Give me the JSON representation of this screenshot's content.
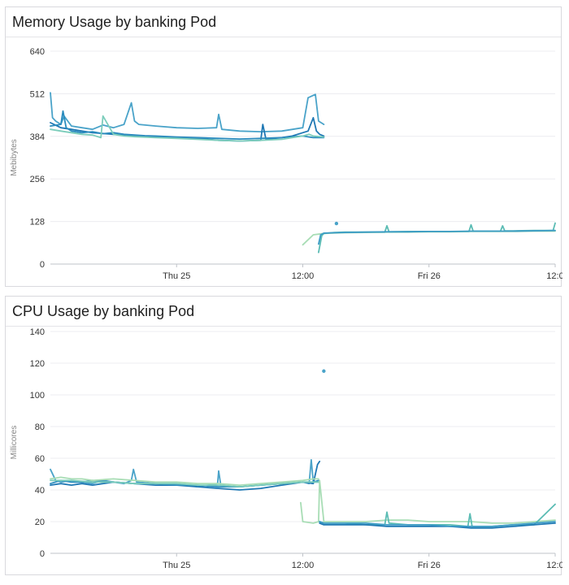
{
  "panels": [
    {
      "title": "Memory Usage by banking Pod",
      "ylabel": "Mebibytes"
    },
    {
      "title": "CPU Usage by banking Pod",
      "ylabel": "Millicores"
    }
  ],
  "chart_data": [
    {
      "type": "line",
      "title": "Memory Usage by banking Pod",
      "ylabel": "Mebibytes",
      "xlabel": "",
      "ylim": [
        0,
        640
      ],
      "yticks": [
        0,
        128,
        256,
        384,
        512,
        640
      ],
      "xlim": [
        0,
        48
      ],
      "xticks": [
        {
          "x": 12,
          "label": "Thu 25"
        },
        {
          "x": 24,
          "label": "12:00"
        },
        {
          "x": 36,
          "label": "Fri 26"
        },
        {
          "x": 48,
          "label": "12:0"
        }
      ],
      "grid": true,
      "series": [
        {
          "color": "#4aa3c9",
          "x": [
            0,
            0.2,
            0.5,
            1,
            1.3,
            2,
            3,
            4,
            5,
            6,
            7,
            7.7,
            8,
            8.4,
            10,
            12,
            14,
            15.8,
            16,
            16.3,
            18,
            20,
            22,
            24,
            24.5,
            25.2,
            25.5,
            26
          ],
          "y": [
            515,
            440,
            430,
            420,
            445,
            415,
            410,
            405,
            418,
            410,
            420,
            485,
            430,
            420,
            415,
            410,
            408,
            410,
            450,
            405,
            400,
            398,
            400,
            410,
            500,
            510,
            430,
            420
          ]
        },
        {
          "color": "#1f78b4",
          "x": [
            0,
            1,
            2,
            3,
            4,
            6,
            8,
            10,
            12,
            14,
            16,
            18,
            20,
            20.2,
            20.5,
            22,
            23,
            24,
            24.5,
            25,
            25.3,
            25.6,
            26
          ],
          "y": [
            425,
            410,
            405,
            400,
            395,
            390,
            385,
            383,
            380,
            378,
            372,
            370,
            372,
            420,
            375,
            380,
            385,
            395,
            400,
            440,
            400,
            390,
            385
          ]
        },
        {
          "color": "#2b8cbe",
          "x": [
            0,
            1,
            1.2,
            1.5,
            2,
            3,
            4,
            5,
            6,
            7,
            8,
            9,
            10,
            12,
            14,
            16,
            18,
            20,
            22,
            24,
            25,
            26
          ],
          "y": [
            415,
            420,
            460,
            410,
            400,
            395,
            398,
            392,
            395,
            390,
            388,
            386,
            385,
            382,
            380,
            378,
            376,
            378,
            380,
            385,
            380,
            380
          ]
        },
        {
          "color": "#7ccdbb",
          "x": [
            0,
            1,
            2,
            3,
            4,
            4.8,
            5,
            6,
            7,
            8,
            10,
            12,
            14,
            16,
            18,
            20,
            22,
            23,
            24,
            24.6,
            25,
            26
          ],
          "y": [
            405,
            400,
            395,
            390,
            388,
            380,
            445,
            390,
            385,
            383,
            380,
            378,
            375,
            372,
            370,
            372,
            375,
            380,
            385,
            390,
            385,
            382
          ]
        },
        {
          "color": "#a8ddb5",
          "x": [
            24,
            25,
            26,
            27,
            28,
            30,
            32,
            34,
            36,
            38,
            40,
            42,
            44,
            46,
            48
          ],
          "y": [
            58,
            88,
            92,
            93,
            94,
            95,
            96,
            96,
            97,
            97,
            98,
            98,
            98,
            99,
            99
          ]
        },
        {
          "color": "#5bbcb4",
          "x": [
            25.5,
            25.8,
            26,
            27,
            28,
            30,
            31.8,
            32,
            32.2,
            34,
            36,
            38,
            39.8,
            40,
            40.2,
            42,
            42.8,
            43,
            43.2,
            44,
            46,
            47.8,
            48
          ],
          "y": [
            35,
            85,
            92,
            95,
            96,
            96,
            96,
            115,
            97,
            98,
            98,
            98,
            98,
            118,
            99,
            99,
            99,
            115,
            100,
            100,
            101,
            101,
            123
          ]
        },
        {
          "color": "#3d9cc6",
          "x": [
            25.5,
            25.7,
            26,
            27,
            28,
            30,
            32,
            34,
            36,
            38,
            40,
            42,
            44,
            46,
            48
          ],
          "y": [
            60,
            88,
            93,
            94,
            95,
            96,
            97,
            97,
            98,
            98,
            99,
            99,
            99,
            100,
            101
          ]
        }
      ],
      "points": [
        {
          "color": "#4aa3c9",
          "x": 27.2,
          "y": 122
        }
      ]
    },
    {
      "type": "line",
      "title": "CPU Usage by banking Pod",
      "ylabel": "Millicores",
      "xlabel": "",
      "ylim": [
        0,
        140
      ],
      "yticks": [
        0,
        20,
        40,
        60,
        80,
        100,
        120,
        140
      ],
      "xlim": [
        0,
        48
      ],
      "xticks": [
        {
          "x": 12,
          "label": "Thu 25"
        },
        {
          "x": 24,
          "label": "12:00"
        },
        {
          "x": 36,
          "label": "Fri 26"
        },
        {
          "x": 48,
          "label": "12:0"
        }
      ],
      "grid": true,
      "series": [
        {
          "color": "#4aa3c9",
          "x": [
            0,
            0.5,
            1,
            2,
            3,
            4,
            5,
            6,
            7,
            7.7,
            7.9,
            8.2,
            10,
            12,
            14,
            15.9,
            16,
            16.2,
            18,
            20,
            22,
            24,
            24.6,
            24.8,
            25,
            25.5
          ],
          "y": [
            53,
            46,
            45,
            46,
            45,
            44,
            46,
            45,
            44,
            46,
            53,
            45,
            44,
            44,
            42,
            44,
            52,
            43,
            42,
            43,
            44,
            45,
            44,
            59,
            45,
            45
          ]
        },
        {
          "color": "#1f78b4",
          "x": [
            0,
            1,
            2,
            3,
            4,
            5,
            6,
            8,
            10,
            12,
            14,
            16,
            18,
            20,
            22,
            24,
            25,
            25.4,
            25.6
          ],
          "y": [
            43,
            44,
            43,
            44,
            43,
            44,
            45,
            44,
            43,
            43,
            42,
            41,
            40,
            41,
            43,
            45,
            44,
            56,
            58
          ]
        },
        {
          "color": "#2b8cbe",
          "x": [
            0,
            1,
            2,
            3,
            4,
            6,
            8,
            10,
            12,
            14,
            16,
            18,
            20,
            22,
            24,
            25,
            25.5
          ],
          "y": [
            44,
            46,
            45,
            45,
            46,
            45,
            44,
            44,
            43,
            43,
            42,
            42,
            43,
            44,
            45,
            45,
            46
          ]
        },
        {
          "color": "#a8ddb5",
          "x": [
            0,
            1,
            2,
            3,
            4,
            6,
            8,
            10,
            12,
            14,
            16,
            18,
            20,
            22,
            24,
            25,
            25.5
          ],
          "y": [
            47,
            48,
            47,
            47,
            46,
            47,
            46,
            45,
            45,
            44,
            44,
            43,
            44,
            45,
            46,
            47,
            47
          ]
        },
        {
          "color": "#7ccdbb",
          "x": [
            0,
            2,
            4,
            6,
            8,
            10,
            12,
            14,
            16,
            18,
            20,
            22,
            24,
            25.5
          ],
          "y": [
            46,
            46,
            45,
            45,
            44,
            44,
            44,
            43,
            43,
            42,
            43,
            44,
            45,
            45
          ]
        },
        {
          "color": "#a8ddb5",
          "x": [
            23.8,
            24,
            25,
            25.5,
            25.6,
            26,
            28,
            30,
            32,
            34,
            36,
            38,
            40,
            42,
            44,
            46,
            48
          ],
          "y": [
            32,
            20,
            19,
            20,
            46,
            20,
            20,
            20,
            21,
            21,
            20,
            20,
            20,
            19,
            19,
            20,
            21
          ]
        },
        {
          "color": "#5bbcb4",
          "x": [
            25.6,
            26,
            28,
            30,
            31.8,
            32,
            32.2,
            34,
            36,
            38,
            39.7,
            39.9,
            40.1,
            42,
            44,
            46,
            48
          ],
          "y": [
            20,
            19,
            19,
            18,
            18,
            26,
            19,
            18,
            18,
            18,
            17,
            25,
            17,
            17,
            18,
            18,
            31
          ]
        },
        {
          "color": "#1f78b4",
          "x": [
            25.6,
            26,
            28,
            30,
            32,
            34,
            36,
            38,
            40,
            42,
            44,
            46,
            48
          ],
          "y": [
            19,
            18,
            18,
            18,
            17,
            17,
            17,
            17,
            16,
            16,
            17,
            18,
            19
          ]
        },
        {
          "color": "#3d9cc6",
          "x": [
            25.6,
            26,
            28,
            30,
            32,
            34,
            36,
            38,
            40,
            42,
            44,
            46,
            48
          ],
          "y": [
            20,
            19,
            19,
            19,
            18,
            18,
            18,
            17,
            17,
            17,
            18,
            19,
            20
          ]
        }
      ],
      "points": [
        {
          "color": "#4aa3c9",
          "x": 26.0,
          "y": 115
        }
      ]
    }
  ]
}
